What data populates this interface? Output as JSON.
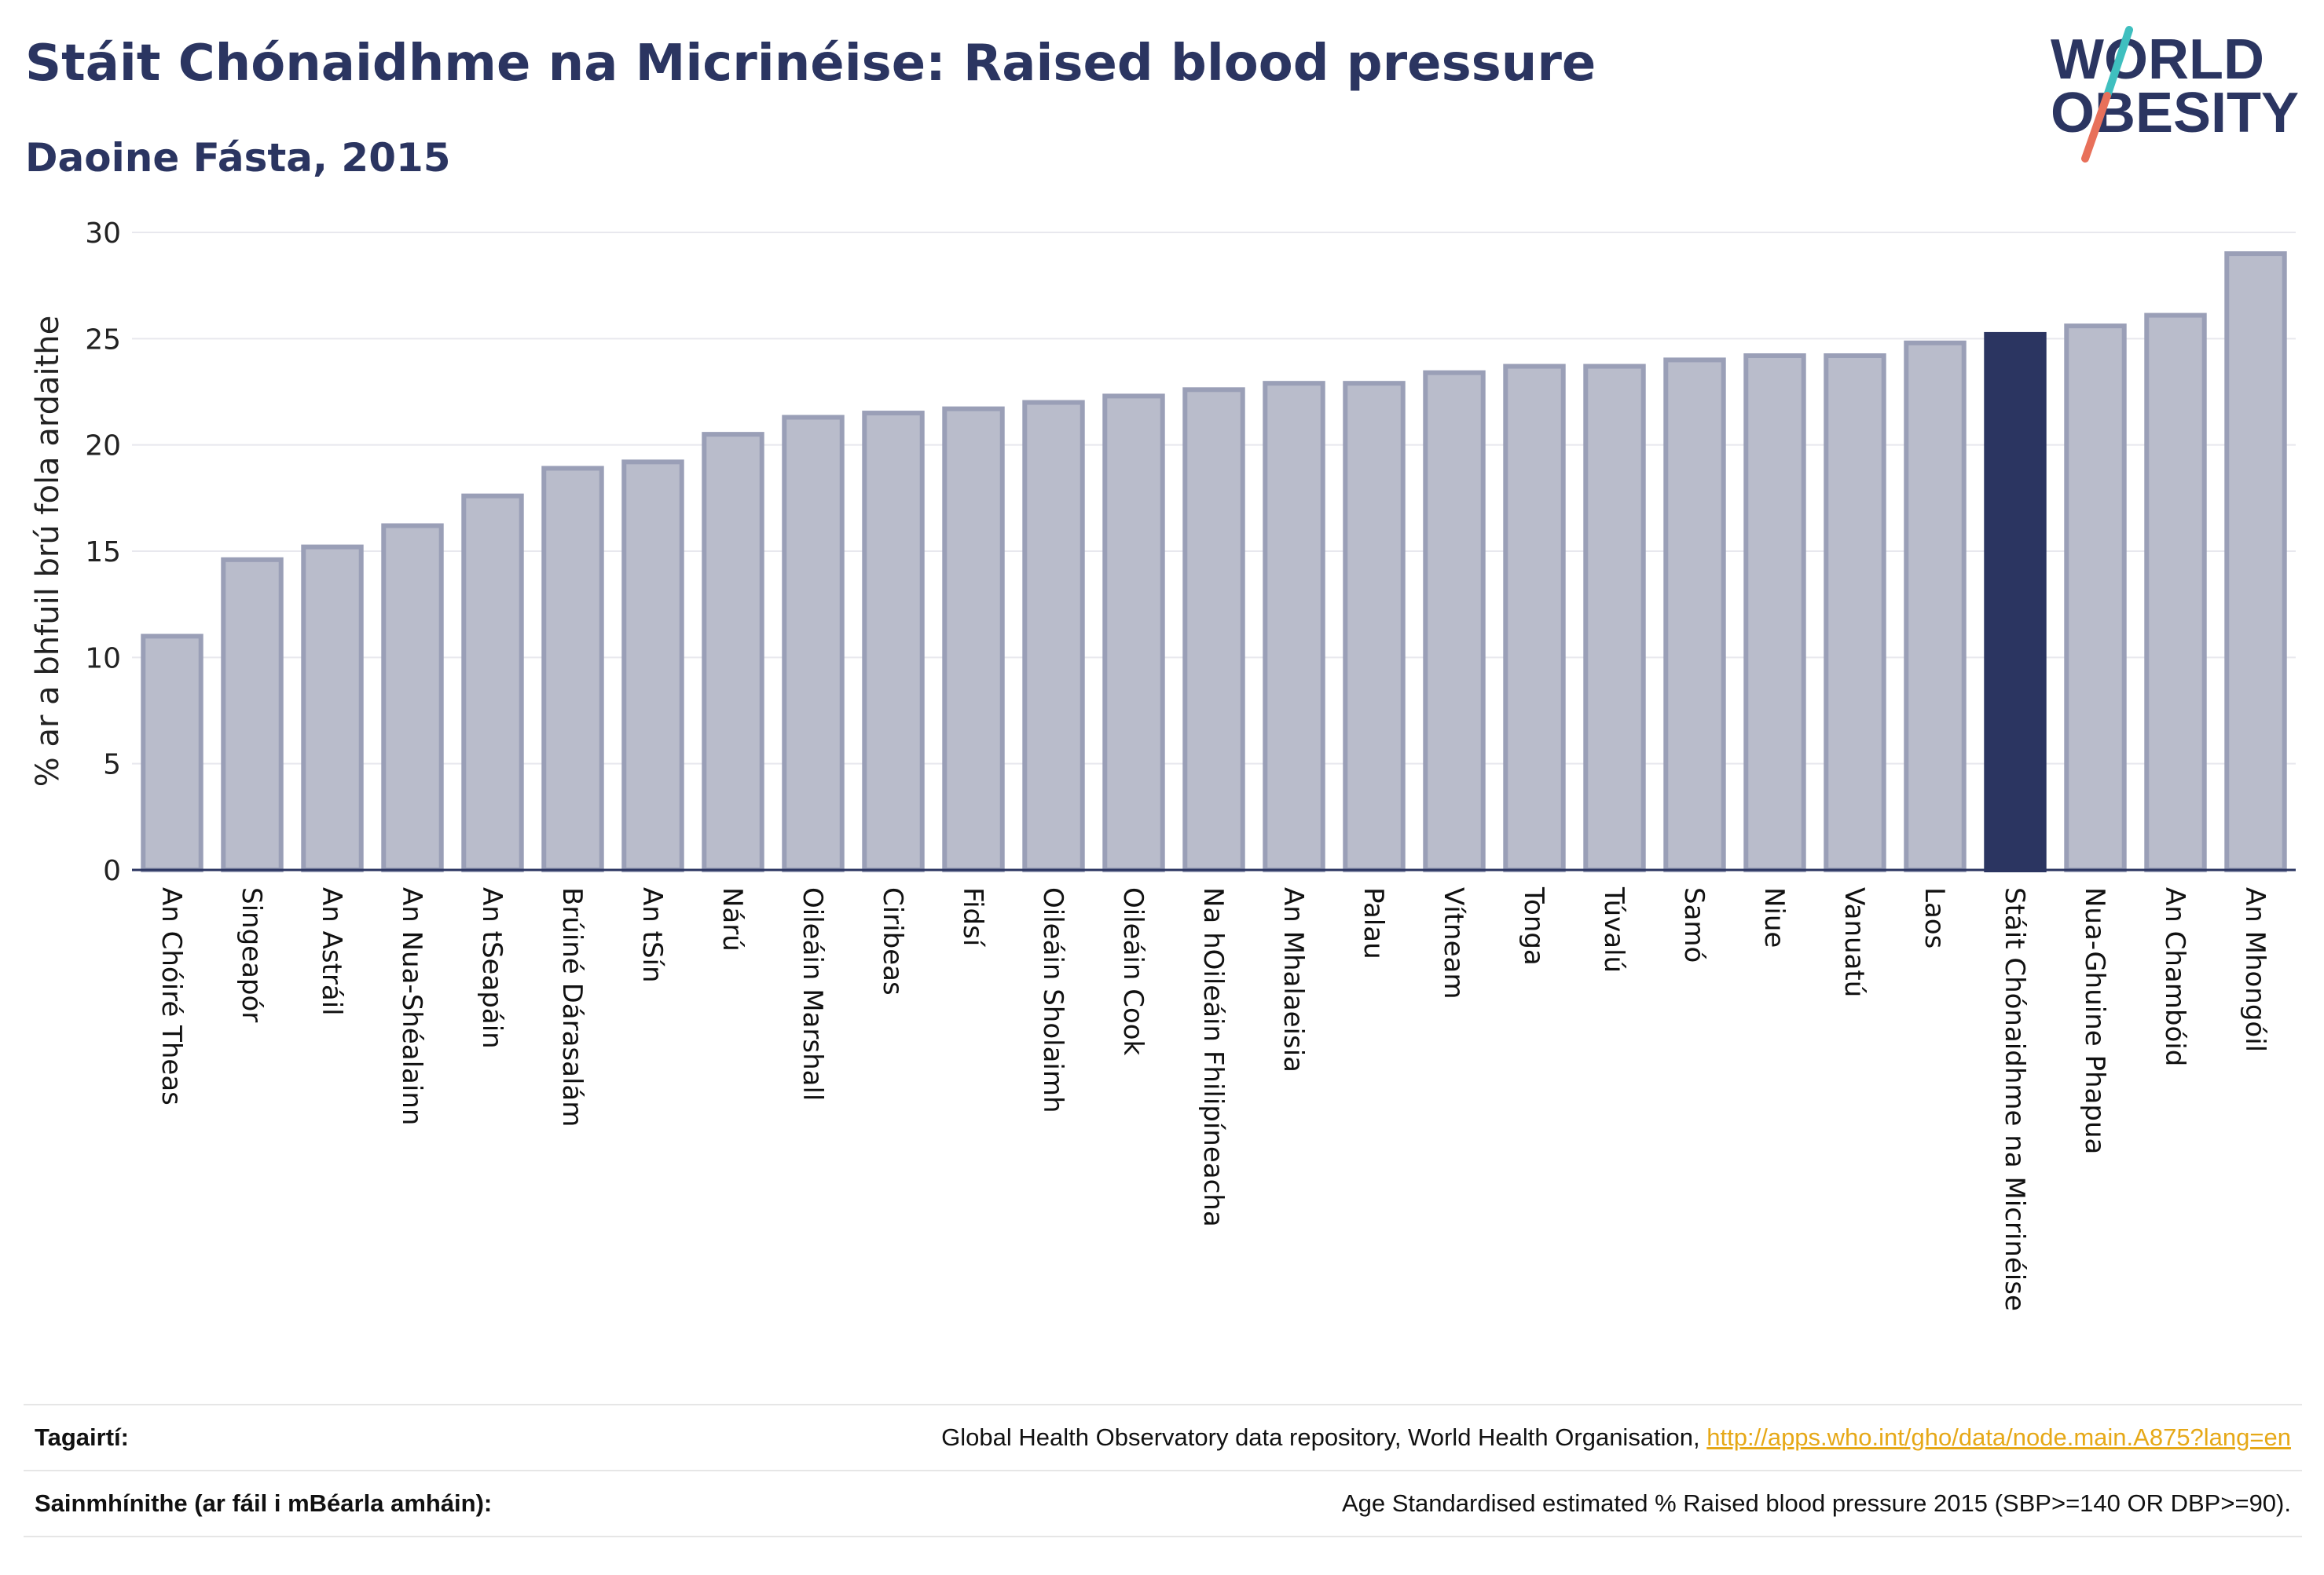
{
  "header": {
    "title": "Stáit Chónaidhme na Micrinéise: Raised blood pressure",
    "subtitle": "Daoine Fásta, 2015"
  },
  "logo": {
    "line1": "WORLD",
    "line2": "OBESITY",
    "colors": {
      "text": "#2b3561",
      "slash_top": "#3fbfbf",
      "slash_bottom": "#e8705a"
    }
  },
  "chart_data": {
    "type": "bar",
    "ylabel": "% ar a bhfuil brú fola ardaithe",
    "xlabel": "",
    "ylim": [
      0,
      30
    ],
    "yticks": [
      0,
      5,
      10,
      15,
      20,
      25,
      30
    ],
    "grid": true,
    "highlight": "Stáit Chónaidhme na Micrinéise",
    "colors": {
      "bar": "#b9bccb",
      "bar_border": "#9a9fb7",
      "highlight": "#2b3561",
      "axis": "#2b3561",
      "grid": "#e8e8ee"
    },
    "categories": [
      "An Chóiré Theas",
      "Singeapór",
      "An Astráil",
      "An Nua-Shéalainn",
      "An tSeapáin",
      "Brúiné Dárasalám",
      "An tSín",
      "Nárú",
      "Oileáin Marshall",
      "Ciribeas",
      "Fidsí",
      "Oileáin Sholaimh",
      "Oileáin Cook",
      "Na hOileáin Fhilipíneacha",
      "An Mhalaeisia",
      "Palau",
      "Vítneam",
      "Tonga",
      "Túvalú",
      "Samó",
      "Niue",
      "Vanuatú",
      "Laos",
      "Stáit Chónaidhme na Micrinéise",
      "Nua-Ghuine Phapua",
      "An Chambóid",
      "An Mhongóil"
    ],
    "values": [
      11.0,
      14.6,
      15.2,
      16.2,
      17.6,
      18.9,
      19.2,
      20.5,
      21.3,
      21.5,
      21.7,
      22.0,
      22.3,
      22.6,
      22.9,
      22.9,
      23.4,
      23.7,
      23.7,
      24.0,
      24.2,
      24.2,
      24.8,
      25.2,
      25.6,
      26.1,
      29.0
    ]
  },
  "notes": {
    "references_label": "Tagairtí:",
    "references_text": "Global Health Observatory data repository, World Health Organisation,",
    "references_link": "http://apps.who.int/gho/data/node.main.A875?lang=en",
    "definitions_label": "Sainmhínithe (ar fáil i mBéarla amháin):",
    "definitions_text": "Age Standardised estimated % Raised blood pressure 2015 (SBP>=140 OR DBP>=90)."
  }
}
